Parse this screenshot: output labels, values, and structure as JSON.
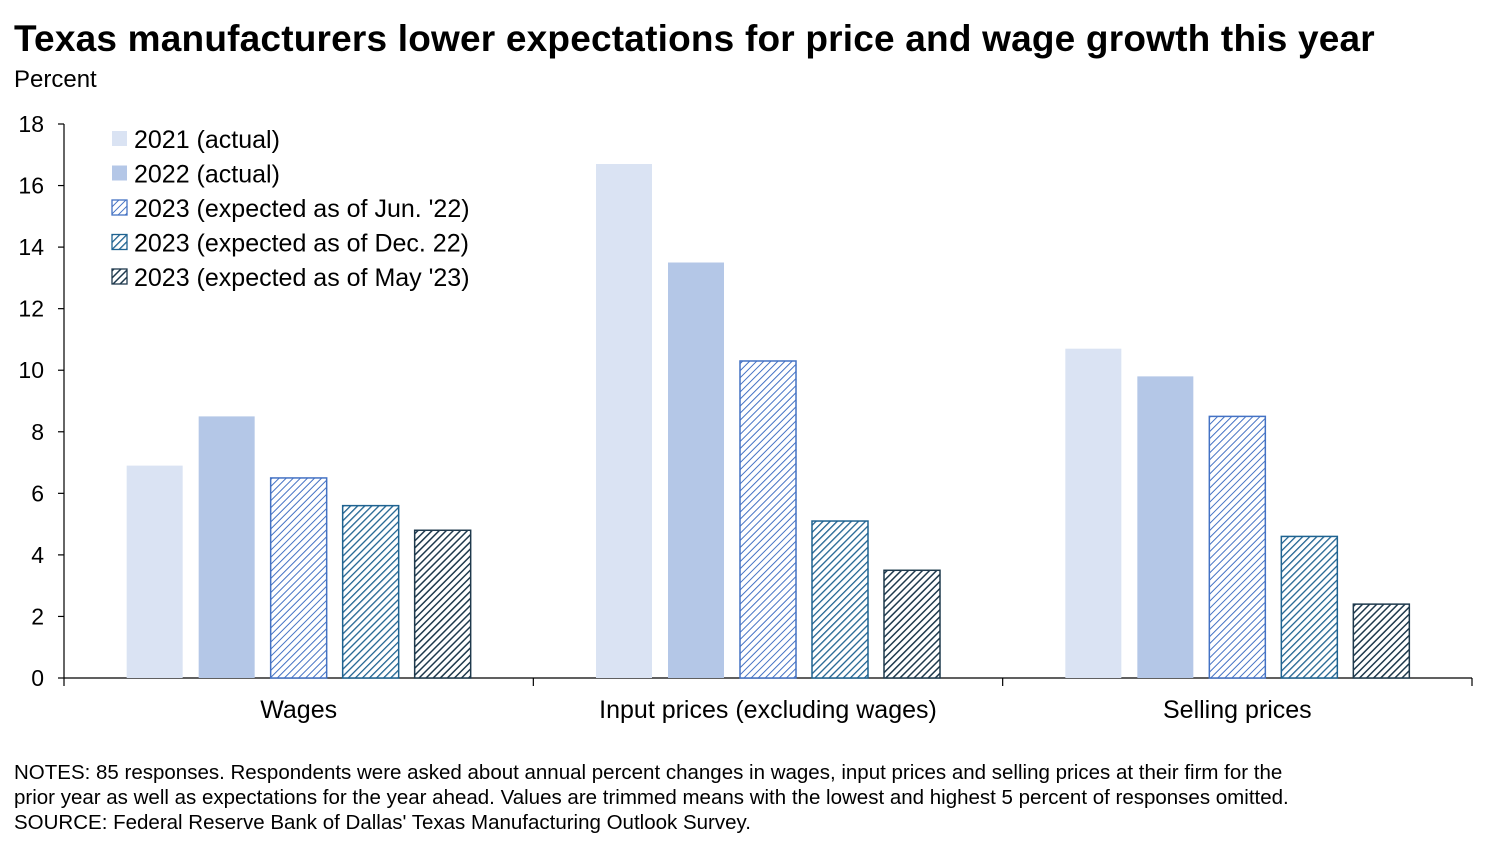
{
  "chart_data": {
    "type": "bar",
    "title": "Texas manufacturers lower expectations for price and wage growth this year",
    "ylabel": "Percent",
    "xlabel": "",
    "ylim": [
      0,
      18
    ],
    "yticks": [
      0,
      2,
      4,
      6,
      8,
      10,
      12,
      14,
      16,
      18
    ],
    "categories": [
      "Wages",
      "Input prices (excluding wages)",
      "Selling prices"
    ],
    "series": [
      {
        "name": "2021 (actual)",
        "values": [
          6.9,
          16.7,
          10.7
        ],
        "color": "#dae3f3",
        "pattern": "solid"
      },
      {
        "name": "2022 (actual)",
        "values": [
          8.5,
          13.5,
          9.8
        ],
        "color": "#b4c7e7",
        "pattern": "solid"
      },
      {
        "name": "2023 (expected as of Jun. '22)",
        "values": [
          6.5,
          10.3,
          8.5
        ],
        "color": "#4472c4",
        "pattern": "hatch-light"
      },
      {
        "name": "2023 (expected as of Dec. 22)",
        "values": [
          5.6,
          5.1,
          4.6
        ],
        "color": "#1f6391",
        "pattern": "hatch-medium"
      },
      {
        "name": "2023 (expected as of May '23)",
        "values": [
          4.8,
          3.5,
          2.4
        ],
        "color": "#1f3a4d",
        "pattern": "hatch-dark"
      }
    ],
    "legend_position": "top-left",
    "grid": false
  },
  "notes": {
    "line1": "NOTES: 85 responses. Respondents were asked about annual percent changes in wages, input prices and selling prices at their firm for the",
    "line2": "prior year as well as expectations for the year ahead. Values are trimmed means with the lowest and highest 5 percent of responses omitted.",
    "line3": "SOURCE: Federal Reserve Bank of Dallas' Texas Manufacturing Outlook Survey."
  }
}
